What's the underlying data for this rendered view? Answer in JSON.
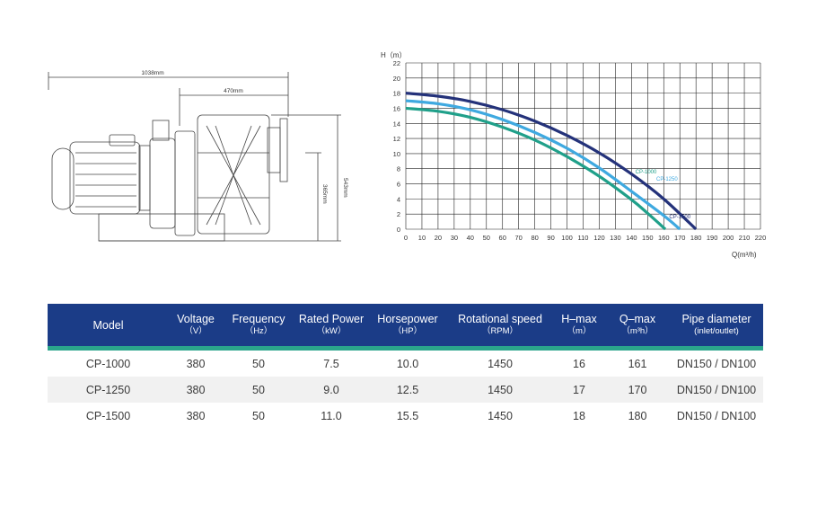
{
  "drawing": {
    "overall_length": "1038mm",
    "inlet_length": "470mm",
    "height_total": "543mm",
    "height_axis": "365mm"
  },
  "chart_data": {
    "type": "line",
    "ylabel": "H（m）",
    "xlabel": "Q(m³/h)",
    "xlim": [
      0,
      220
    ],
    "ylim": [
      0,
      22
    ],
    "x_ticks": [
      0,
      10,
      20,
      30,
      40,
      50,
      60,
      70,
      80,
      90,
      100,
      110,
      120,
      130,
      140,
      150,
      160,
      170,
      180,
      190,
      200,
      210,
      220
    ],
    "y_ticks": [
      0,
      2,
      4,
      6,
      8,
      10,
      12,
      14,
      16,
      18,
      20,
      22
    ],
    "grid": true,
    "series": [
      {
        "name": "CP-1000",
        "color": "#20a08a",
        "x": [
          0,
          20,
          40,
          60,
          80,
          100,
          120,
          140,
          150,
          161
        ],
        "y": [
          16,
          15.6,
          14.8,
          13.5,
          11.8,
          9.6,
          7,
          3.9,
          2.1,
          0
        ]
      },
      {
        "name": "CP-1250",
        "color": "#3fa9e0",
        "x": [
          0,
          20,
          40,
          60,
          80,
          100,
          120,
          140,
          160,
          170
        ],
        "y": [
          17,
          16.6,
          15.8,
          14.5,
          12.8,
          10.7,
          8.1,
          5,
          1.8,
          0
        ]
      },
      {
        "name": "CP-1500",
        "color": "#24327a",
        "x": [
          0,
          20,
          40,
          60,
          80,
          100,
          120,
          140,
          160,
          180
        ],
        "y": [
          18,
          17.6,
          16.9,
          15.8,
          14.3,
          12.4,
          10.1,
          7.3,
          4,
          0
        ]
      }
    ]
  },
  "table": {
    "headers": [
      {
        "label": "Model",
        "unit": ""
      },
      {
        "label": "Voltage",
        "unit": "（V）"
      },
      {
        "label": "Frequency",
        "unit": "（Hz）"
      },
      {
        "label": "Rated Power",
        "unit": "（kW）"
      },
      {
        "label": "Horsepower",
        "unit": "（HP）"
      },
      {
        "label": "Rotational speed",
        "unit": "（RPM）"
      },
      {
        "label": "H–max",
        "unit": "（m）"
      },
      {
        "label": "Q–max",
        "unit": "（m³h）"
      },
      {
        "label": "Pipe diameter",
        "unit": "(inlet/outlet)"
      }
    ],
    "rows": [
      [
        "CP-1000",
        "380",
        "50",
        "7.5",
        "10.0",
        "1450",
        "16",
        "161",
        "DN150 / DN100"
      ],
      [
        "CP-1250",
        "380",
        "50",
        "9.0",
        "12.5",
        "1450",
        "17",
        "170",
        "DN150 / DN100"
      ],
      [
        "CP-1500",
        "380",
        "50",
        "11.0",
        "15.5",
        "1450",
        "18",
        "180",
        "DN150 / DN100"
      ]
    ]
  }
}
